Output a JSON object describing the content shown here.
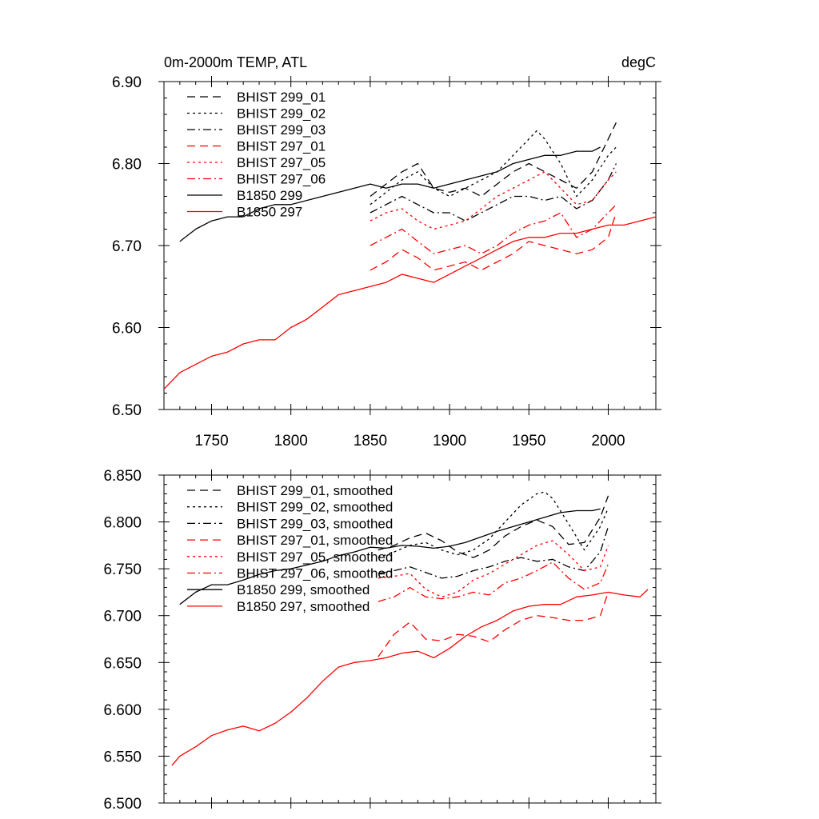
{
  "chart_data": [
    {
      "type": "line",
      "title": "0m-2000m TEMP, ATL",
      "title_right": "degC",
      "xlim": [
        1720,
        2030
      ],
      "ylim": [
        6.5,
        6.9
      ],
      "xticks": [
        1750,
        1800,
        1850,
        1900,
        1950,
        2000
      ],
      "xtick_labels": [
        "1750",
        "1800",
        "1850",
        "1900",
        "1950",
        "2000"
      ],
      "yticks": [
        6.5,
        6.6,
        6.7,
        6.8,
        6.9
      ],
      "ytick_labels": [
        "6.50",
        "6.60",
        "6.70",
        "6.80",
        "6.90"
      ],
      "legend_position": "top-left",
      "series": [
        {
          "name": "BHIST 299_01",
          "color": "#000000",
          "dash": "long-dash",
          "x": [
            1850,
            1860,
            1870,
            1880,
            1890,
            1900,
            1910,
            1920,
            1930,
            1940,
            1950,
            1960,
            1970,
            1980,
            1990,
            2000,
            2005
          ],
          "y": [
            6.76,
            6.775,
            6.79,
            6.8,
            6.77,
            6.765,
            6.77,
            6.76,
            6.775,
            6.79,
            6.8,
            6.79,
            6.78,
            6.77,
            6.79,
            6.83,
            6.85
          ]
        },
        {
          "name": "BHIST 299_02",
          "color": "#000000",
          "dash": "short-dash",
          "x": [
            1850,
            1860,
            1870,
            1880,
            1890,
            1900,
            1910,
            1920,
            1930,
            1940,
            1950,
            1955,
            1960,
            1970,
            1980,
            1990,
            2000,
            2005
          ],
          "y": [
            6.75,
            6.765,
            6.78,
            6.79,
            6.77,
            6.76,
            6.77,
            6.78,
            6.79,
            6.81,
            6.83,
            6.84,
            6.83,
            6.8,
            6.76,
            6.78,
            6.81,
            6.82
          ]
        },
        {
          "name": "BHIST 299_03",
          "color": "#000000",
          "dash": "dash-dot",
          "x": [
            1850,
            1860,
            1870,
            1880,
            1890,
            1900,
            1910,
            1920,
            1930,
            1940,
            1950,
            1960,
            1970,
            1980,
            1990,
            2000,
            2005
          ],
          "y": [
            6.74,
            6.75,
            6.76,
            6.75,
            6.74,
            6.74,
            6.73,
            6.74,
            6.75,
            6.76,
            6.76,
            6.755,
            6.76,
            6.745,
            6.755,
            6.78,
            6.8
          ]
        },
        {
          "name": "BHIST 297_01",
          "color": "#ff0000",
          "dash": "long-dash",
          "x": [
            1850,
            1860,
            1870,
            1880,
            1890,
            1900,
            1910,
            1920,
            1930,
            1940,
            1950,
            1960,
            1970,
            1980,
            1990,
            2000,
            2005
          ],
          "y": [
            6.67,
            6.68,
            6.695,
            6.685,
            6.67,
            6.675,
            6.68,
            6.67,
            6.68,
            6.69,
            6.705,
            6.7,
            6.695,
            6.69,
            6.695,
            6.71,
            6.74
          ]
        },
        {
          "name": "BHIST 297_05",
          "color": "#ff0000",
          "dash": "short-dash",
          "x": [
            1850,
            1860,
            1870,
            1880,
            1890,
            1900,
            1910,
            1920,
            1930,
            1940,
            1950,
            1960,
            1970,
            1980,
            1990,
            2000,
            2005
          ],
          "y": [
            6.73,
            6.74,
            6.745,
            6.73,
            6.72,
            6.725,
            6.73,
            6.745,
            6.76,
            6.77,
            6.78,
            6.79,
            6.77,
            6.75,
            6.755,
            6.78,
            6.79
          ]
        },
        {
          "name": "BHIST 297_06",
          "color": "#ff0000",
          "dash": "dash-dot",
          "x": [
            1850,
            1860,
            1870,
            1880,
            1890,
            1900,
            1910,
            1920,
            1930,
            1940,
            1950,
            1960,
            1970,
            1980,
            1990,
            2000,
            2005
          ],
          "y": [
            6.7,
            6.71,
            6.72,
            6.705,
            6.69,
            6.695,
            6.7,
            6.69,
            6.7,
            6.715,
            6.725,
            6.73,
            6.74,
            6.71,
            6.72,
            6.74,
            6.75
          ]
        },
        {
          "name": "B1850 299",
          "color": "#000000",
          "dash": "solid",
          "x": [
            1730,
            1740,
            1750,
            1760,
            1770,
            1780,
            1790,
            1800,
            1810,
            1820,
            1830,
            1840,
            1850,
            1860,
            1870,
            1880,
            1890,
            1900,
            1910,
            1920,
            1930,
            1940,
            1950,
            1960,
            1970,
            1980,
            1990,
            1995
          ],
          "y": [
            6.705,
            6.72,
            6.73,
            6.735,
            6.735,
            6.745,
            6.75,
            6.75,
            6.755,
            6.76,
            6.765,
            6.77,
            6.775,
            6.77,
            6.775,
            6.775,
            6.77,
            6.775,
            6.78,
            6.785,
            6.79,
            6.8,
            6.805,
            6.81,
            6.81,
            6.815,
            6.815,
            6.82
          ]
        },
        {
          "name": "B1850 297",
          "color": "#ff0000",
          "dash": "solid",
          "x": [
            1720,
            1730,
            1740,
            1750,
            1760,
            1770,
            1780,
            1790,
            1800,
            1810,
            1820,
            1830,
            1840,
            1850,
            1860,
            1870,
            1880,
            1890,
            1900,
            1910,
            1920,
            1930,
            1940,
            1950,
            1960,
            1970,
            1980,
            1990,
            2000,
            2010,
            2020,
            2030
          ],
          "y": [
            6.525,
            6.545,
            6.555,
            6.565,
            6.57,
            6.58,
            6.585,
            6.585,
            6.6,
            6.61,
            6.625,
            6.64,
            6.645,
            6.65,
            6.655,
            6.665,
            6.66,
            6.655,
            6.665,
            6.675,
            6.685,
            6.695,
            6.705,
            6.71,
            6.71,
            6.715,
            6.715,
            6.72,
            6.725,
            6.725,
            6.73,
            6.735
          ]
        }
      ]
    },
    {
      "type": "line",
      "title": "",
      "xlim": [
        1720,
        2030
      ],
      "ylim": [
        6.5,
        6.85
      ],
      "xticks": [
        1750,
        1800,
        1850,
        1900,
        1950,
        2000
      ],
      "yticks": [
        6.5,
        6.55,
        6.6,
        6.65,
        6.7,
        6.75,
        6.8,
        6.85
      ],
      "ytick_labels": [
        "6.500",
        "6.550",
        "6.600",
        "6.650",
        "6.700",
        "6.750",
        "6.800",
        "6.850"
      ],
      "legend_position": "top-left",
      "series": [
        {
          "name": "BHIST 299_01, smoothed",
          "color": "#000000",
          "dash": "long-dash",
          "x": [
            1855,
            1865,
            1875,
            1885,
            1895,
            1905,
            1915,
            1925,
            1935,
            1945,
            1955,
            1965,
            1975,
            1985,
            1995,
            2000
          ],
          "y": [
            6.77,
            6.775,
            6.783,
            6.788,
            6.78,
            6.768,
            6.762,
            6.77,
            6.785,
            6.795,
            6.802,
            6.795,
            6.776,
            6.778,
            6.805,
            6.828
          ]
        },
        {
          "name": "BHIST 299_02, smoothed",
          "color": "#000000",
          "dash": "short-dash",
          "x": [
            1855,
            1865,
            1875,
            1885,
            1895,
            1905,
            1915,
            1925,
            1935,
            1945,
            1955,
            1960,
            1965,
            1975,
            1985,
            1995,
            2000
          ],
          "y": [
            6.762,
            6.768,
            6.775,
            6.778,
            6.77,
            6.765,
            6.77,
            6.782,
            6.8,
            6.818,
            6.83,
            6.832,
            6.825,
            6.798,
            6.77,
            6.795,
            6.815
          ]
        },
        {
          "name": "BHIST 299_03, smoothed",
          "color": "#000000",
          "dash": "dash-dot",
          "x": [
            1855,
            1865,
            1875,
            1885,
            1895,
            1905,
            1915,
            1925,
            1935,
            1945,
            1955,
            1965,
            1975,
            1985,
            1995,
            2000
          ],
          "y": [
            6.745,
            6.748,
            6.752,
            6.746,
            6.74,
            6.742,
            6.748,
            6.752,
            6.758,
            6.762,
            6.758,
            6.76,
            6.752,
            6.748,
            6.768,
            6.795
          ]
        },
        {
          "name": "BHIST 297_01, smoothed",
          "color": "#ff0000",
          "dash": "long-dash",
          "x": [
            1855,
            1865,
            1875,
            1885,
            1895,
            1905,
            1915,
            1925,
            1935,
            1945,
            1955,
            1965,
            1975,
            1985,
            1995,
            2000
          ],
          "y": [
            6.656,
            6.68,
            6.693,
            6.675,
            6.673,
            6.68,
            6.678,
            6.672,
            6.685,
            6.695,
            6.7,
            6.698,
            6.695,
            6.695,
            6.7,
            6.725
          ]
        },
        {
          "name": "BHIST 297_05, smoothed",
          "color": "#ff0000",
          "dash": "short-dash",
          "x": [
            1855,
            1865,
            1875,
            1885,
            1895,
            1905,
            1915,
            1925,
            1935,
            1945,
            1955,
            1965,
            1975,
            1985,
            1995,
            2000
          ],
          "y": [
            6.74,
            6.742,
            6.745,
            6.728,
            6.72,
            6.725,
            6.738,
            6.745,
            6.755,
            6.765,
            6.775,
            6.78,
            6.765,
            6.748,
            6.752,
            6.775
          ]
        },
        {
          "name": "BHIST 297_06, smoothed",
          "color": "#ff0000",
          "dash": "dash-dot",
          "x": [
            1855,
            1865,
            1875,
            1885,
            1895,
            1905,
            1915,
            1925,
            1935,
            1945,
            1955,
            1965,
            1975,
            1985,
            1995,
            2000
          ],
          "y": [
            6.715,
            6.72,
            6.73,
            6.72,
            6.718,
            6.72,
            6.725,
            6.722,
            6.735,
            6.74,
            6.748,
            6.757,
            6.74,
            6.728,
            6.735,
            6.755
          ]
        },
        {
          "name": "B1850 299, smoothed",
          "color": "#000000",
          "dash": "solid",
          "x": [
            1730,
            1740,
            1750,
            1760,
            1770,
            1780,
            1790,
            1800,
            1810,
            1820,
            1830,
            1840,
            1850,
            1860,
            1870,
            1880,
            1890,
            1900,
            1910,
            1920,
            1930,
            1940,
            1950,
            1960,
            1970,
            1980,
            1990,
            1995
          ],
          "y": [
            6.712,
            6.725,
            6.733,
            6.733,
            6.738,
            6.744,
            6.748,
            6.75,
            6.754,
            6.758,
            6.764,
            6.768,
            6.773,
            6.772,
            6.775,
            6.774,
            6.772,
            6.774,
            6.778,
            6.784,
            6.79,
            6.795,
            6.8,
            6.805,
            6.81,
            6.812,
            6.812,
            6.814
          ]
        },
        {
          "name": "B1850 297, smoothed",
          "color": "#ff0000",
          "dash": "solid",
          "x": [
            1725,
            1730,
            1740,
            1750,
            1760,
            1770,
            1780,
            1790,
            1800,
            1810,
            1820,
            1830,
            1840,
            1850,
            1860,
            1870,
            1880,
            1890,
            1900,
            1910,
            1920,
            1930,
            1940,
            1950,
            1960,
            1970,
            1980,
            1990,
            2000,
            2010,
            2020,
            2025
          ],
          "y": [
            6.54,
            6.55,
            6.56,
            6.572,
            6.578,
            6.582,
            6.577,
            6.585,
            6.597,
            6.612,
            6.63,
            6.645,
            6.65,
            6.652,
            6.655,
            6.66,
            6.662,
            6.655,
            6.665,
            6.678,
            6.688,
            6.695,
            6.705,
            6.71,
            6.712,
            6.712,
            6.72,
            6.722,
            6.725,
            6.722,
            6.72,
            6.728
          ]
        }
      ]
    }
  ]
}
